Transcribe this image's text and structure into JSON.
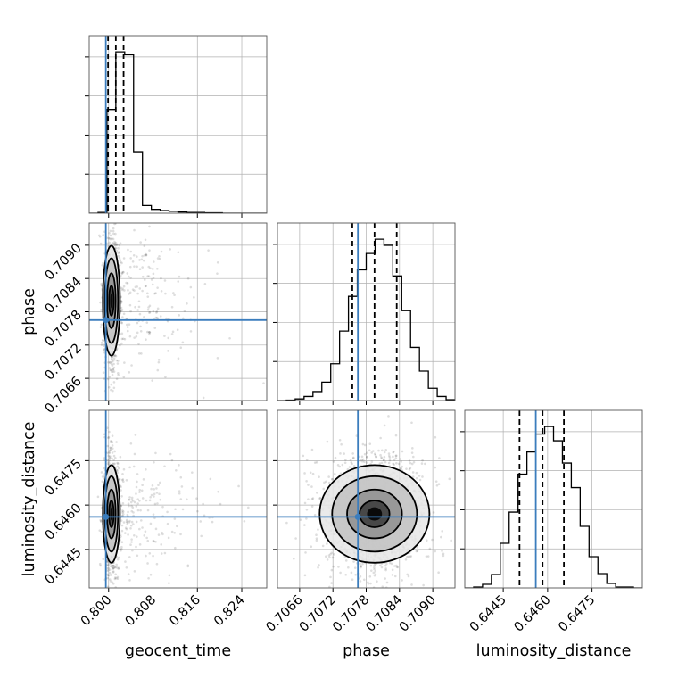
{
  "chart_data": {
    "type": "corner",
    "colors": {
      "truth": "#3b7dbd",
      "hist": "#000000",
      "samples": "#000000",
      "grid": "#b0b0b0"
    },
    "parameters": [
      {
        "name": "geocent_time",
        "xlabel": "geocent_time",
        "ylabel": "",
        "range": [
          0.7965,
          0.8285
        ],
        "ticks": [
          "0.800",
          "0.808",
          "0.816",
          "0.824"
        ],
        "tick_values": [
          0.8,
          0.808,
          0.816,
          0.824
        ],
        "truth": 0.7995,
        "quantiles": [
          0.7999,
          0.8013,
          0.8027
        ],
        "hist": {
          "edges_start": 0.7965,
          "bin_width": 0.0016,
          "counts": [
            0,
            2,
            270,
            420,
            412,
            160,
            20,
            10,
            7,
            5,
            3,
            2,
            2,
            1,
            1,
            0,
            0,
            0,
            0,
            0
          ]
        }
      },
      {
        "name": "phase",
        "xlabel": "phase",
        "ylabel": "phase",
        "range": [
          0.7062,
          0.7094
        ],
        "ticks": [
          "0.7066",
          "0.7072",
          "0.7078",
          "0.7084",
          "0.7090"
        ],
        "tick_values": [
          0.7066,
          0.7072,
          0.7078,
          0.7084,
          0.709
        ],
        "truth": 0.70765,
        "quantiles": [
          0.70755,
          0.70795,
          0.70835
        ],
        "hist": {
          "edges_start": 0.7062,
          "bin_width": 0.00016,
          "counts": [
            0,
            1,
            4,
            10,
            22,
            45,
            90,
            170,
            255,
            320,
            360,
            395,
            380,
            305,
            220,
            130,
            72,
            30,
            10,
            2
          ]
        }
      },
      {
        "name": "luminosity_distance",
        "xlabel": "luminosity_distance",
        "ylabel": "luminosity_distance",
        "range": [
          0.6432,
          0.6492
        ],
        "ticks": [
          "0.6445",
          "0.6460",
          "0.6475"
        ],
        "tick_values": [
          0.6445,
          0.646,
          0.6475
        ],
        "truth": 0.6456,
        "quantiles": [
          0.64505,
          0.64583,
          0.64655
        ],
        "hist": {
          "edges_start": 0.6432,
          "bin_width": 0.0003,
          "counts": [
            0,
            2,
            8,
            30,
            100,
            170,
            255,
            305,
            345,
            362,
            330,
            280,
            225,
            138,
            70,
            32,
            10,
            2,
            2,
            0
          ]
        }
      }
    ],
    "pairs": [
      {
        "x": "geocent_time",
        "y": "phase",
        "center": [
          0.8005,
          0.708
        ],
        "sd": [
          0.0007,
          0.00045
        ],
        "n": 1200,
        "contour_levels_sd": [
          0.6,
          1.1,
          1.7,
          2.2
        ]
      },
      {
        "x": "geocent_time",
        "y": "luminosity_distance",
        "center": [
          0.8005,
          0.6457
        ],
        "sd": [
          0.0007,
          0.00075
        ],
        "n": 1200,
        "contour_levels_sd": [
          0.6,
          1.1,
          1.7,
          2.2
        ]
      },
      {
        "x": "phase",
        "y": "luminosity_distance",
        "center": [
          0.70795,
          0.6457
        ],
        "sd": [
          0.00045,
          0.00075
        ],
        "n": 1600,
        "contour_levels_sd": [
          0.6,
          1.1,
          1.7,
          2.2
        ]
      }
    ],
    "grid": true
  }
}
